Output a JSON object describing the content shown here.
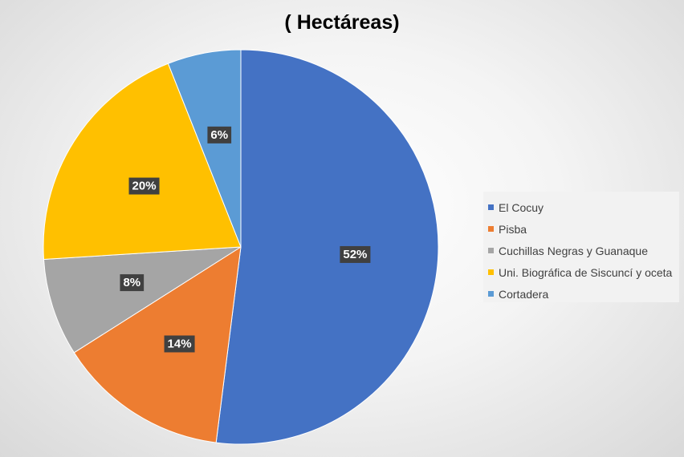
{
  "chart_data": {
    "type": "pie",
    "title": "( Hectáreas)",
    "categories": [
      "El Cocuy",
      "Pisba",
      "Cuchillas Negras y Guanaque",
      "Uni. Biográfica de Siscuncí y oceta",
      "Cortadera"
    ],
    "values": [
      52,
      14,
      8,
      20,
      6
    ],
    "labels": [
      "52%",
      "14%",
      "8%",
      "20%",
      "6%"
    ],
    "colors": [
      "#4472C4",
      "#ED7D31",
      "#A5A5A5",
      "#FFC000",
      "#5B9BD5"
    ],
    "legend_position": "right"
  }
}
